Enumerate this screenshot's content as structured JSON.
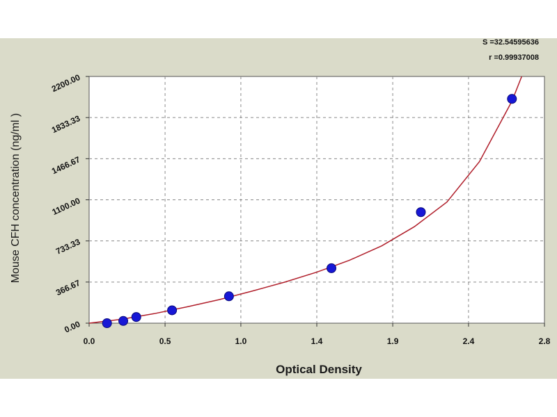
{
  "stats": {
    "s_text": "S =32.54595636",
    "r_text": "r =0.99937008"
  },
  "chart_data": {
    "type": "scatter",
    "xlabel": "Optical Density",
    "ylabel": "Mouse CFH concentration (ng/ml )",
    "xlim": [
      0.0,
      2.8
    ],
    "ylim": [
      0.0,
      2200.0
    ],
    "x_ticks": [
      "0.0",
      "0.5",
      "1.0",
      "1.4",
      "1.9",
      "2.4",
      "2.8"
    ],
    "x_tick_values": [
      0.0,
      0.467,
      0.933,
      1.4,
      1.867,
      2.333,
      2.8
    ],
    "y_ticks": [
      "0.00",
      "366.67",
      "733.33",
      "1100.00",
      "1466.67",
      "1833.33",
      "2200.00"
    ],
    "y_tick_values": [
      0.0,
      366.67,
      733.33,
      1100.0,
      1466.67,
      1833.33,
      2200.0
    ],
    "grid": true,
    "points": {
      "x": [
        0.11,
        0.21,
        0.29,
        0.51,
        0.86,
        1.49,
        2.04,
        2.6
      ],
      "y": [
        0,
        20,
        55,
        115,
        240,
        490,
        990,
        2000
      ]
    },
    "fit_curve": {
      "x": [
        0.0,
        0.2,
        0.4,
        0.6,
        0.8,
        1.0,
        1.2,
        1.4,
        1.6,
        1.8,
        2.0,
        2.2,
        2.4,
        2.6,
        2.66
      ],
      "y": [
        0,
        35,
        85,
        145,
        210,
        285,
        365,
        455,
        560,
        690,
        860,
        1080,
        1440,
        1980,
        2200
      ]
    },
    "colors": {
      "point": "#1717d6",
      "curve": "#b01e2a",
      "grid": "#8a8a8a",
      "panel": "#dadbc9",
      "plot_bg": "#ffffff"
    }
  }
}
